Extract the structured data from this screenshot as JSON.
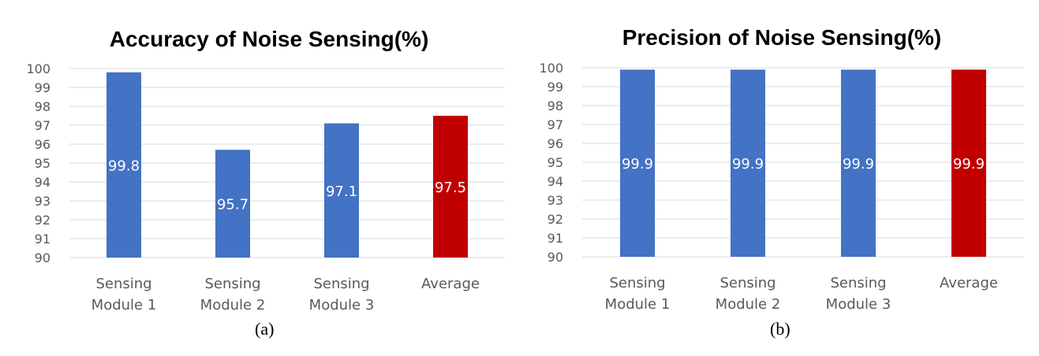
{
  "chart_data": [
    {
      "type": "bar",
      "title": "Accuracy of Noise Sensing(%)",
      "caption": "(a)",
      "categories": [
        [
          "Sensing",
          "Module 1"
        ],
        [
          "Sensing",
          "Module 2"
        ],
        [
          "Sensing",
          "Module 3"
        ],
        [
          "Average"
        ]
      ],
      "values": [
        99.8,
        95.7,
        97.1,
        97.5
      ],
      "data_labels": [
        "99.8",
        "95.7",
        "97.1",
        "97.5"
      ],
      "bar_colors": [
        "#4472c4",
        "#4472c4",
        "#4472c4",
        "#c00000"
      ],
      "ylim": [
        90,
        100
      ],
      "yticks": [
        90,
        91,
        92,
        93,
        94,
        95,
        96,
        97,
        98,
        99,
        100
      ],
      "grid": true,
      "xlabel": "",
      "ylabel": ""
    },
    {
      "type": "bar",
      "title": "Precision of Noise Sensing(%)",
      "caption": "(b)",
      "categories": [
        [
          "Sensing",
          "Module 1"
        ],
        [
          "Sensing",
          "Module 2"
        ],
        [
          "Sensing",
          "Module 3"
        ],
        [
          "Average"
        ]
      ],
      "values": [
        99.9,
        99.9,
        99.9,
        99.9
      ],
      "data_labels": [
        "99.9",
        "99.9",
        "99.9",
        "99.9"
      ],
      "bar_colors": [
        "#4472c4",
        "#4472c4",
        "#4472c4",
        "#c00000"
      ],
      "ylim": [
        90,
        100
      ],
      "yticks": [
        90,
        91,
        92,
        93,
        94,
        95,
        96,
        97,
        98,
        99,
        100
      ],
      "grid": true,
      "xlabel": "",
      "ylabel": ""
    }
  ]
}
